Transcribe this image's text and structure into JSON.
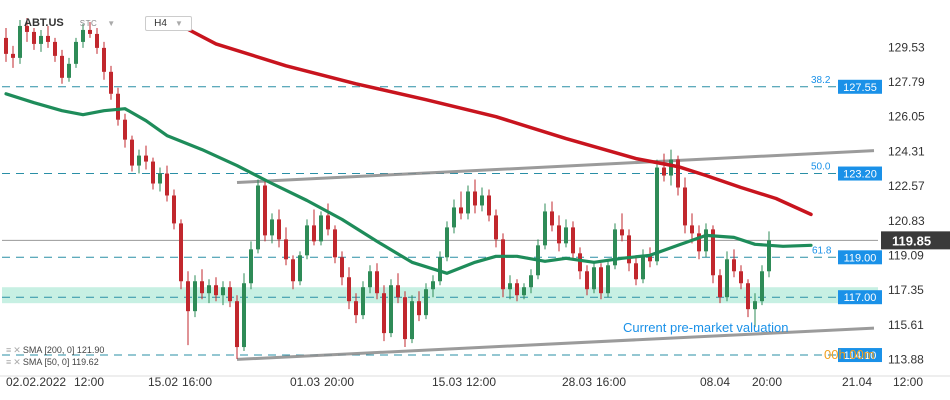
{
  "toolbar": {
    "symbol": "ABT.US",
    "source": "STC",
    "timeframe": "H4"
  },
  "legend": {
    "sma200": "SMA [200, 0] 121.90",
    "sma50": "SMA [50, 0] 119.62"
  },
  "countdown": "00h 00m",
  "annotation": "Current pre-market valuation",
  "colors": {
    "sma200": "#c8141e",
    "sma50": "#1e8c5a",
    "bull": "#2e8b57",
    "bear": "#c1272d",
    "channel": "#8a8a8a",
    "fib_line": "#2a8fa6",
    "fib_label": "#1a91e8",
    "zone": "#5fd3b0",
    "countdown": "#f0a020"
  },
  "chart_data": {
    "type": "candlestick",
    "ylim": [
      113.4,
      131.5
    ],
    "y_ticks": [
      "129.53",
      "127.79",
      "126.05",
      "124.31",
      "122.57",
      "120.83",
      "119.09",
      "117.35",
      "115.61",
      "113.88"
    ],
    "x_ticks": [
      "02.02.2022",
      "12:00",
      "15.02",
      "16:00",
      "01.03",
      "20:00",
      "15.03",
      "12:00",
      "28.03",
      "16:00",
      "08.04",
      "20:00",
      "21.04",
      "12:00"
    ],
    "last_price": "119.85",
    "levels": [
      {
        "label": "38.2",
        "value": "127.55",
        "price": 127.55,
        "type": "fib"
      },
      {
        "label": "50.0",
        "value": "123.20",
        "price": 123.2,
        "type": "fib"
      },
      {
        "label": "61.8",
        "value": "119.00",
        "price": 119.0,
        "type": "fib"
      },
      {
        "label": "",
        "value": "117.00",
        "price": 117.0,
        "type": "zone"
      },
      {
        "label": "",
        "value": "114.10",
        "price": 114.1,
        "type": "plain"
      }
    ],
    "zone": [
      116.7,
      117.5
    ],
    "channel_upper": [
      [
        33,
        122.75
      ],
      [
        124,
        124.35
      ]
    ],
    "channel_lower": [
      [
        33,
        113.88
      ],
      [
        124,
        115.45
      ]
    ],
    "sma200": [
      [
        24,
        130.8
      ],
      [
        30,
        129.7
      ],
      [
        40,
        128.6
      ],
      [
        50,
        127.7
      ],
      [
        60,
        126.9
      ],
      [
        70,
        126.05
      ],
      [
        80,
        124.95
      ],
      [
        90,
        123.95
      ],
      [
        96,
        123.55
      ],
      [
        100,
        123.1
      ],
      [
        105,
        122.5
      ],
      [
        110,
        121.95
      ],
      [
        115,
        121.15
      ]
    ],
    "sma50": [
      [
        0,
        127.2
      ],
      [
        4,
        126.75
      ],
      [
        8,
        126.35
      ],
      [
        11,
        126.15
      ],
      [
        14,
        126.35
      ],
      [
        17,
        126.45
      ],
      [
        20,
        125.85
      ],
      [
        23,
        125.1
      ],
      [
        28,
        124.4
      ],
      [
        33,
        123.6
      ],
      [
        38,
        122.7
      ],
      [
        43,
        121.85
      ],
      [
        48,
        120.9
      ],
      [
        53,
        119.8
      ],
      [
        58,
        118.75
      ],
      [
        63,
        118.2
      ],
      [
        67,
        118.75
      ],
      [
        70,
        119.05
      ],
      [
        73,
        119.05
      ],
      [
        77,
        118.8
      ],
      [
        80,
        118.95
      ],
      [
        84,
        118.75
      ],
      [
        88,
        118.95
      ],
      [
        92,
        119.1
      ],
      [
        96,
        119.6
      ],
      [
        100,
        120.1
      ],
      [
        104,
        120.0
      ],
      [
        107,
        119.65
      ],
      [
        111,
        119.55
      ],
      [
        115,
        119.6
      ]
    ],
    "candles": [
      [
        130.0,
        130.5,
        128.8,
        129.2
      ],
      [
        129.2,
        129.6,
        128.5,
        129.0
      ],
      [
        129.0,
        130.9,
        128.7,
        130.6
      ],
      [
        130.6,
        131.0,
        129.8,
        130.3
      ],
      [
        130.3,
        130.5,
        129.4,
        129.7
      ],
      [
        129.7,
        130.4,
        129.3,
        130.1
      ],
      [
        130.1,
        130.6,
        129.5,
        129.8
      ],
      [
        129.8,
        130.0,
        128.8,
        129.1
      ],
      [
        129.1,
        129.4,
        127.7,
        128.0
      ],
      [
        128.0,
        129.0,
        127.8,
        128.7
      ],
      [
        128.7,
        130.0,
        128.5,
        129.8
      ],
      [
        129.8,
        130.7,
        129.5,
        130.4
      ],
      [
        130.4,
        130.8,
        130.0,
        130.2
      ],
      [
        130.2,
        130.5,
        129.2,
        129.5
      ],
      [
        129.5,
        129.8,
        127.9,
        128.3
      ],
      [
        128.3,
        128.6,
        126.9,
        127.2
      ],
      [
        127.2,
        127.5,
        125.6,
        125.9
      ],
      [
        125.9,
        126.2,
        124.5,
        124.9
      ],
      [
        124.9,
        125.1,
        123.3,
        123.6
      ],
      [
        123.6,
        124.4,
        123.2,
        124.1
      ],
      [
        124.1,
        124.6,
        123.4,
        123.8
      ],
      [
        123.8,
        124.0,
        122.4,
        122.7
      ],
      [
        122.7,
        123.5,
        122.3,
        123.2
      ],
      [
        123.2,
        123.6,
        121.8,
        122.1
      ],
      [
        122.1,
        122.4,
        120.4,
        120.7
      ],
      [
        120.7,
        120.9,
        117.4,
        117.8
      ],
      [
        117.8,
        118.3,
        114.6,
        116.3
      ],
      [
        116.3,
        118.1,
        116.0,
        117.8
      ],
      [
        117.8,
        118.4,
        116.9,
        117.2
      ],
      [
        117.2,
        117.9,
        116.7,
        117.6
      ],
      [
        117.6,
        118.0,
        116.8,
        117.1
      ],
      [
        117.1,
        117.8,
        116.6,
        117.5
      ],
      [
        117.5,
        117.8,
        116.5,
        116.8
      ],
      [
        116.8,
        117.1,
        113.9,
        114.5
      ],
      [
        114.5,
        118.2,
        114.3,
        117.7
      ],
      [
        117.7,
        119.8,
        117.4,
        119.4
      ],
      [
        119.4,
        122.9,
        119.2,
        122.6
      ],
      [
        122.6,
        122.9,
        119.8,
        120.1
      ],
      [
        120.1,
        121.2,
        119.7,
        120.9
      ],
      [
        120.9,
        121.4,
        119.5,
        119.9
      ],
      [
        119.9,
        120.5,
        118.6,
        118.9
      ],
      [
        118.9,
        119.1,
        117.4,
        117.8
      ],
      [
        117.8,
        119.3,
        117.6,
        119.1
      ],
      [
        119.1,
        120.9,
        118.9,
        120.6
      ],
      [
        120.6,
        121.4,
        119.6,
        119.8
      ],
      [
        119.8,
        121.3,
        119.6,
        121.1
      ],
      [
        121.1,
        121.7,
        120.1,
        120.4
      ],
      [
        120.4,
        120.6,
        118.7,
        119.0
      ],
      [
        119.0,
        119.3,
        117.6,
        118.0
      ],
      [
        118.0,
        118.5,
        116.4,
        116.8
      ],
      [
        116.8,
        117.2,
        115.7,
        116.1
      ],
      [
        116.1,
        117.8,
        115.9,
        117.5
      ],
      [
        117.5,
        118.6,
        117.2,
        118.3
      ],
      [
        118.3,
        118.7,
        116.9,
        117.2
      ],
      [
        117.2,
        117.6,
        114.8,
        115.2
      ],
      [
        115.2,
        117.9,
        115.0,
        117.6
      ],
      [
        117.6,
        118.2,
        116.7,
        117.0
      ],
      [
        117.0,
        117.3,
        114.5,
        114.9
      ],
      [
        114.9,
        117.1,
        114.7,
        116.8
      ],
      [
        116.8,
        117.3,
        115.8,
        116.1
      ],
      [
        116.1,
        117.7,
        115.9,
        117.4
      ],
      [
        117.4,
        118.1,
        117.0,
        117.8
      ],
      [
        117.8,
        119.3,
        117.6,
        119.0
      ],
      [
        119.0,
        120.8,
        118.8,
        120.5
      ],
      [
        120.5,
        121.9,
        120.2,
        121.5
      ],
      [
        121.5,
        122.3,
        120.9,
        121.2
      ],
      [
        121.2,
        122.6,
        120.9,
        122.3
      ],
      [
        122.3,
        122.9,
        121.2,
        121.6
      ],
      [
        121.6,
        122.5,
        121.3,
        122.1
      ],
      [
        122.1,
        122.4,
        120.8,
        121.1
      ],
      [
        121.1,
        121.4,
        119.5,
        119.9
      ],
      [
        119.9,
        120.2,
        117.0,
        117.4
      ],
      [
        117.4,
        118.1,
        116.9,
        117.7
      ],
      [
        117.7,
        117.9,
        116.8,
        117.1
      ],
      [
        117.1,
        117.7,
        116.9,
        117.5
      ],
      [
        117.5,
        118.4,
        117.2,
        118.1
      ],
      [
        118.1,
        119.9,
        117.9,
        119.6
      ],
      [
        119.6,
        121.7,
        119.4,
        121.3
      ],
      [
        121.3,
        121.8,
        120.3,
        120.6
      ],
      [
        120.6,
        121.1,
        119.3,
        119.7
      ],
      [
        119.7,
        120.9,
        119.5,
        120.5
      ],
      [
        120.5,
        120.8,
        118.9,
        119.2
      ],
      [
        119.2,
        119.5,
        117.9,
        118.3
      ],
      [
        118.3,
        118.6,
        117.1,
        117.4
      ],
      [
        117.4,
        118.8,
        117.2,
        118.5
      ],
      [
        118.5,
        118.7,
        116.9,
        117.2
      ],
      [
        117.2,
        118.9,
        117.0,
        118.6
      ],
      [
        118.6,
        120.7,
        118.4,
        120.4
      ],
      [
        120.4,
        121.2,
        119.8,
        120.1
      ],
      [
        120.1,
        120.4,
        118.3,
        118.7
      ],
      [
        118.7,
        119.1,
        117.6,
        117.9
      ],
      [
        117.9,
        119.4,
        117.7,
        119.1
      ],
      [
        119.1,
        119.5,
        118.5,
        118.8
      ],
      [
        118.8,
        123.9,
        118.6,
        123.5
      ],
      [
        123.5,
        124.2,
        122.8,
        123.1
      ],
      [
        123.1,
        124.4,
        122.6,
        123.9
      ],
      [
        123.9,
        124.1,
        122.1,
        122.5
      ],
      [
        122.5,
        123.0,
        120.2,
        120.6
      ],
      [
        120.6,
        121.2,
        119.7,
        120.2
      ],
      [
        120.2,
        120.6,
        118.9,
        119.3
      ],
      [
        119.3,
        120.7,
        119.0,
        120.4
      ],
      [
        120.4,
        120.6,
        117.7,
        118.1
      ],
      [
        118.1,
        118.4,
        116.7,
        117.0
      ],
      [
        117.0,
        119.3,
        116.8,
        118.9
      ],
      [
        118.9,
        119.4,
        118.0,
        118.3
      ],
      [
        118.3,
        118.6,
        117.4,
        117.7
      ],
      [
        117.7,
        117.9,
        116.0,
        116.4
      ],
      [
        116.4,
        117.2,
        115.5,
        116.8
      ],
      [
        116.8,
        118.6,
        116.6,
        118.3
      ],
      [
        118.3,
        120.3,
        118.0,
        119.85
      ]
    ]
  }
}
